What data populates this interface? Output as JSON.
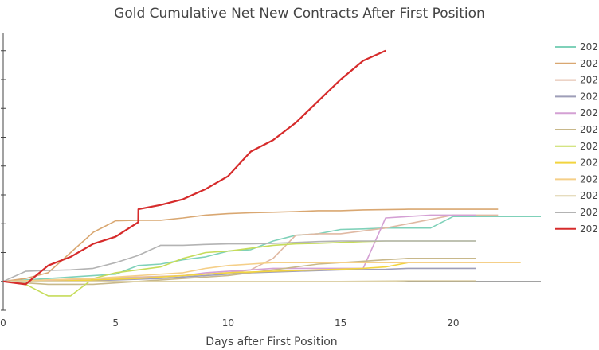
{
  "chart_data": {
    "type": "line",
    "title": "Gold Cumulative Net New Contracts After First Position",
    "xlabel": "Days after First Position",
    "ylabel": "",
    "xlim": [
      0,
      23.9
    ],
    "ylim": [
      -1.0,
      8.6
    ],
    "x_ticks": [
      0,
      5,
      10,
      15,
      20
    ],
    "grid": false,
    "legend_position": "right",
    "series": [
      {
        "name": "202",
        "color": "#7fd1b9",
        "points": [
          [
            0,
            0
          ],
          [
            3,
            0.15
          ],
          [
            5,
            0.25
          ],
          [
            6,
            0.55
          ],
          [
            7,
            0.6
          ],
          [
            8,
            0.75
          ],
          [
            9,
            0.85
          ],
          [
            10,
            1.05
          ],
          [
            11,
            1.1
          ],
          [
            12,
            1.4
          ],
          [
            13,
            1.6
          ],
          [
            14,
            1.65
          ],
          [
            15,
            1.8
          ],
          [
            16,
            1.82
          ],
          [
            17,
            1.85
          ],
          [
            18,
            1.85
          ],
          [
            19,
            1.85
          ],
          [
            20,
            2.25
          ],
          [
            21,
            2.25
          ],
          [
            22,
            2.25
          ],
          [
            23.9,
            2.25
          ]
        ]
      },
      {
        "name": "202",
        "color": "#d9a771",
        "points": [
          [
            0,
            0
          ],
          [
            1,
            0.1
          ],
          [
            2,
            0.3
          ],
          [
            3,
            1.0
          ],
          [
            4,
            1.7
          ],
          [
            5,
            2.1
          ],
          [
            6,
            2.12
          ],
          [
            7,
            2.12
          ],
          [
            8,
            2.2
          ],
          [
            9,
            2.3
          ],
          [
            10,
            2.35
          ],
          [
            11,
            2.38
          ],
          [
            12,
            2.4
          ],
          [
            13,
            2.42
          ],
          [
            14,
            2.45
          ],
          [
            15,
            2.45
          ],
          [
            16,
            2.48
          ],
          [
            18,
            2.5
          ],
          [
            20,
            2.5
          ],
          [
            22,
            2.5
          ]
        ]
      },
      {
        "name": "202",
        "color": "#e0b9a3",
        "points": [
          [
            0,
            0
          ],
          [
            2,
            0.05
          ],
          [
            4,
            0.1
          ],
          [
            6,
            0.15
          ],
          [
            8,
            0.2
          ],
          [
            10,
            0.3
          ],
          [
            11,
            0.4
          ],
          [
            12,
            0.8
          ],
          [
            13,
            1.6
          ],
          [
            14,
            1.65
          ],
          [
            15,
            1.65
          ],
          [
            16,
            1.75
          ],
          [
            17,
            1.85
          ],
          [
            18,
            2.0
          ],
          [
            19,
            2.15
          ],
          [
            20,
            2.3
          ],
          [
            22,
            2.3
          ]
        ]
      },
      {
        "name": "202",
        "color": "#9e9eb8",
        "points": [
          [
            0,
            0
          ],
          [
            3,
            0
          ],
          [
            5,
            0.05
          ],
          [
            7,
            0.1
          ],
          [
            9,
            0.2
          ],
          [
            11,
            0.3
          ],
          [
            13,
            0.35
          ],
          [
            15,
            0.4
          ],
          [
            17,
            0.42
          ],
          [
            18,
            0.45
          ],
          [
            21,
            0.45
          ]
        ]
      },
      {
        "name": "202",
        "color": "#d4a0d4",
        "points": [
          [
            0,
            0
          ],
          [
            4,
            0.05
          ],
          [
            6,
            0.1
          ],
          [
            8,
            0.2
          ],
          [
            9,
            0.3
          ],
          [
            10,
            0.35
          ],
          [
            11,
            0.4
          ],
          [
            12,
            0.45
          ],
          [
            13,
            0.45
          ],
          [
            14,
            0.45
          ],
          [
            15,
            0.45
          ],
          [
            16,
            0.45
          ],
          [
            17,
            2.2
          ],
          [
            18,
            2.25
          ],
          [
            19,
            2.3
          ],
          [
            20,
            2.3
          ],
          [
            21,
            2.3
          ]
        ]
      },
      {
        "name": "202",
        "color": "#c8b88a",
        "points": [
          [
            0,
            0
          ],
          [
            2,
            -0.1
          ],
          [
            4,
            -0.1
          ],
          [
            6,
            0
          ],
          [
            8,
            0.1
          ],
          [
            10,
            0.2
          ],
          [
            12,
            0.4
          ],
          [
            14,
            0.6
          ],
          [
            16,
            0.7
          ],
          [
            17,
            0.75
          ],
          [
            18,
            0.8
          ],
          [
            19,
            0.8
          ],
          [
            20,
            0.8
          ],
          [
            21,
            0.8
          ]
        ]
      },
      {
        "name": "202",
        "color": "#c6dc5a",
        "points": [
          [
            0,
            0
          ],
          [
            1,
            -0.1
          ],
          [
            2,
            -0.5
          ],
          [
            3,
            -0.5
          ],
          [
            4,
            0.1
          ],
          [
            5,
            0.3
          ],
          [
            6,
            0.4
          ],
          [
            7,
            0.5
          ],
          [
            8,
            0.8
          ],
          [
            9,
            1.0
          ],
          [
            10,
            1.05
          ],
          [
            11,
            1.15
          ],
          [
            12,
            1.25
          ],
          [
            13,
            1.3
          ],
          [
            14,
            1.32
          ],
          [
            15,
            1.35
          ],
          [
            16,
            1.38
          ],
          [
            17,
            1.4
          ],
          [
            18,
            1.4
          ],
          [
            19,
            1.4
          ],
          [
            20,
            1.4
          ],
          [
            21,
            1.4
          ]
        ]
      },
      {
        "name": "202",
        "color": "#f2d43f",
        "points": [
          [
            0,
            0
          ],
          [
            2,
            0
          ],
          [
            4,
            0.05
          ],
          [
            6,
            0.1
          ],
          [
            8,
            0.2
          ],
          [
            10,
            0.3
          ],
          [
            12,
            0.35
          ],
          [
            14,
            0.4
          ],
          [
            16,
            0.45
          ],
          [
            17,
            0.5
          ],
          [
            18,
            0.65
          ],
          [
            20,
            0.65
          ],
          [
            22,
            0.65
          ],
          [
            23,
            0.65
          ]
        ]
      },
      {
        "name": "202",
        "color": "#f5cf88",
        "points": [
          [
            0,
            0
          ],
          [
            2,
            0.05
          ],
          [
            4,
            0.1
          ],
          [
            6,
            0.2
          ],
          [
            8,
            0.3
          ],
          [
            9,
            0.45
          ],
          [
            10,
            0.55
          ],
          [
            11,
            0.6
          ],
          [
            12,
            0.65
          ],
          [
            13,
            0.65
          ],
          [
            14,
            0.65
          ],
          [
            15,
            0.65
          ],
          [
            16,
            0.65
          ],
          [
            17,
            0.65
          ],
          [
            18,
            0.65
          ],
          [
            20,
            0.65
          ],
          [
            23,
            0.65
          ]
        ]
      },
      {
        "name": "202",
        "color": "#ddd1a8",
        "points": [
          [
            0,
            0
          ],
          [
            3,
            0
          ],
          [
            6,
            0
          ],
          [
            9,
            0
          ],
          [
            12,
            0
          ],
          [
            15,
            0
          ],
          [
            18,
            0.02
          ],
          [
            21,
            0.02
          ]
        ]
      },
      {
        "name": "202",
        "color": "#b3b3b3",
        "points": [
          [
            0,
            0
          ],
          [
            1,
            0.35
          ],
          [
            2,
            0.38
          ],
          [
            3,
            0.4
          ],
          [
            4,
            0.45
          ],
          [
            5,
            0.65
          ],
          [
            6,
            0.9
          ],
          [
            7,
            1.25
          ],
          [
            8,
            1.25
          ],
          [
            9,
            1.28
          ],
          [
            10,
            1.3
          ],
          [
            11,
            1.3
          ],
          [
            12,
            1.32
          ],
          [
            13,
            1.35
          ],
          [
            14,
            1.38
          ],
          [
            15,
            1.4
          ],
          [
            16,
            1.4
          ],
          [
            17,
            1.4
          ],
          [
            18,
            1.4
          ],
          [
            19,
            1.4
          ],
          [
            20,
            1.4
          ],
          [
            21,
            1.4
          ]
        ]
      },
      {
        "name": "202",
        "color": "#d62b2b",
        "points": [
          [
            0,
            0
          ],
          [
            1,
            -0.1
          ],
          [
            2,
            0.55
          ],
          [
            3,
            0.85
          ],
          [
            4,
            1.3
          ],
          [
            5,
            1.55
          ],
          [
            6,
            2.05
          ],
          [
            6.01,
            2.5
          ],
          [
            7,
            2.65
          ],
          [
            8,
            2.85
          ],
          [
            9,
            3.2
          ],
          [
            10,
            3.65
          ],
          [
            11,
            4.5
          ],
          [
            12,
            4.9
          ],
          [
            13,
            5.5
          ],
          [
            14,
            6.25
          ],
          [
            15,
            7.0
          ],
          [
            16,
            7.65
          ],
          [
            17,
            8.0
          ]
        ]
      }
    ]
  }
}
